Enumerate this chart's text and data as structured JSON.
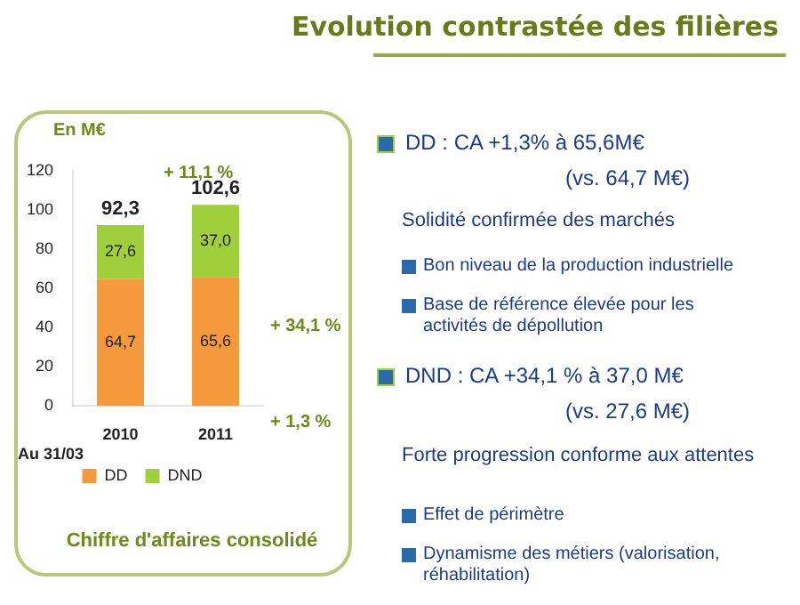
{
  "chart_data": {
    "type": "bar",
    "title": "Evolution contrastée des filières",
    "categories": [
      "2010",
      "2011"
    ],
    "stacked": true,
    "series": [
      {
        "name": "DD",
        "color": "#f59a3c",
        "values": [
          64.7,
          65.6
        ],
        "value_labels": [
          "64,7",
          "65,6"
        ]
      },
      {
        "name": "DND",
        "color": "#9fcf3a",
        "values": [
          27.6,
          37.0
        ],
        "value_labels": [
          "27,6",
          "37,0"
        ]
      }
    ],
    "totals": [
      "92,3",
      "102,6"
    ],
    "ylim": [
      0,
      120
    ],
    "yticks": [
      0,
      20,
      40,
      60,
      80,
      100,
      120
    ],
    "grid": false,
    "legend": "bottom",
    "annotations": [
      "En M€",
      "Au 31/03",
      "Chiffre d'affaires consolidé",
      "+ 11,1 %",
      "+ 34,1 %",
      "+ 1,3 %",
      "DD : CA +1,3% à 65,6M€",
      "(vs. 64,7 M€)",
      "Solidité confirmée des marchés",
      "Bon niveau de la production industrielle",
      "Base de référence élevée pour les activités de dépollution",
      "DND : CA +34,1 % à 37,0 M€",
      "(vs. 27,6 M€)",
      "Forte progression conforme aux attentes",
      "Effet de périmètre",
      "Dynamisme des métiers (valorisation, réhabilitation)"
    ]
  }
}
